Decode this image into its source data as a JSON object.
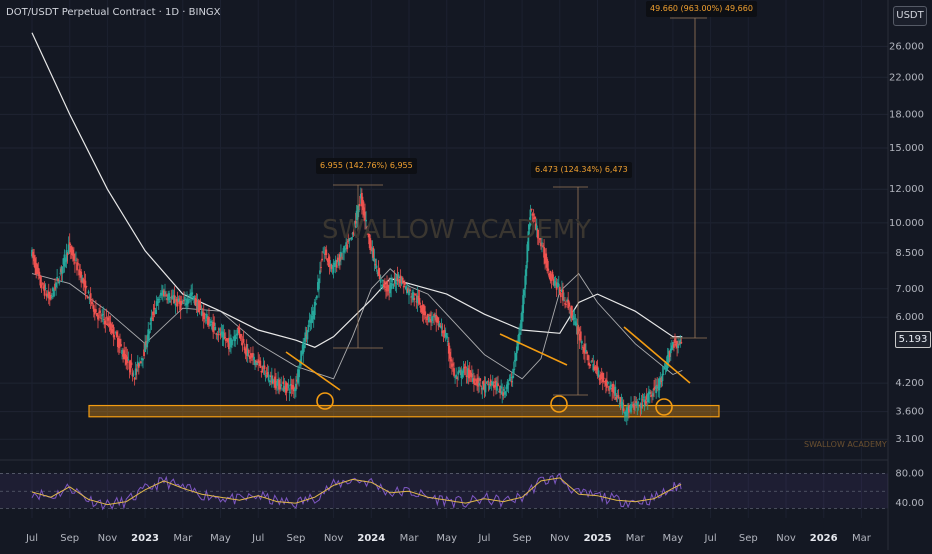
{
  "header": {
    "title": "DOT/USDT Perpetual Contract · 1D · BINGX",
    "currency": "USDT",
    "last_price": "5.193"
  },
  "watermarks": {
    "main": "SWALLOW ACADEMY",
    "corner": "SWALLOW ACADEMY"
  },
  "measurements": [
    {
      "text": "6.955 (142.76%) 6,955"
    },
    {
      "text": "6.473 (124.34%) 6,473"
    },
    {
      "text": "49.660 (963.00%) 49,660"
    }
  ],
  "colors": {
    "background": "#141823",
    "up": "#26a69a",
    "down": "#ef5350",
    "annotation": "#f39c12",
    "rsi": "#7e57c2",
    "rsi_ma": "#e0b84a"
  },
  "chart_data": [
    {
      "type": "line",
      "title": "DOT/USDT Perpetual Contract · 1D · BINGX",
      "scale": "log",
      "ylim": [
        2.8,
        30
      ],
      "y_ticks": [
        26,
        22,
        18,
        15,
        12,
        10,
        8.5,
        7,
        6,
        4.2,
        3.6,
        3.1
      ],
      "y_tick_labels": [
        "26.000",
        "22.000",
        "18.000",
        "15.000",
        "12.000",
        "10.000",
        "8.500",
        "7.000",
        "6.000",
        "4.200",
        "3.600",
        "3.100"
      ],
      "x_tick_labels": [
        "Jul",
        "Sep",
        "Nov",
        "2023",
        "Mar",
        "May",
        "Jul",
        "Sep",
        "Nov",
        "2024",
        "Mar",
        "May",
        "Jul",
        "Sep",
        "Nov",
        "2025",
        "Mar",
        "May",
        "Jul",
        "Sep",
        "Nov",
        "2026",
        "Mar"
      ],
      "x_tick_bold": [
        "2023",
        "2024",
        "2025",
        "2026"
      ],
      "x_ticks": [
        0,
        2,
        4,
        6,
        8,
        10,
        12,
        14,
        16,
        18,
        20,
        22,
        24,
        26,
        28,
        30,
        32,
        34,
        36,
        38,
        40,
        42,
        44
      ],
      "x_unit": "months since Jul 2022",
      "series": [
        {
          "role": "price",
          "x": [
            0,
            0.5,
            1,
            1.5,
            2,
            2.5,
            3,
            3.5,
            4,
            4.5,
            5,
            5.5,
            6,
            6.5,
            7,
            7.5,
            8,
            8.5,
            9,
            9.5,
            10,
            10.5,
            11,
            11.5,
            12,
            12.5,
            13,
            13.5,
            14,
            14.5,
            15,
            15.5,
            16,
            16.5,
            17,
            17.5,
            18,
            18.5,
            19,
            19.5,
            20,
            20.5,
            21,
            21.5,
            22,
            22.5,
            23,
            23.5,
            24,
            24.5,
            25,
            25.5,
            26,
            26.5,
            27,
            27.5,
            28,
            28.5,
            29,
            29.5,
            30,
            30.5,
            31,
            31.5,
            32,
            32.5,
            33,
            33.5,
            34,
            34.5
          ],
          "values": [
            8.6,
            7.2,
            6.6,
            7.5,
            8.8,
            7.8,
            6.8,
            6.1,
            5.9,
            5.4,
            4.8,
            4.4,
            5.0,
            6.2,
            6.9,
            6.6,
            6.4,
            6.8,
            6.2,
            5.8,
            5.5,
            5.2,
            5.6,
            4.9,
            4.7,
            4.4,
            4.2,
            4.1,
            4.1,
            5.3,
            6.2,
            8.6,
            7.8,
            8.4,
            9.2,
            11.5,
            8.9,
            7.3,
            7.0,
            7.5,
            6.9,
            6.6,
            6.0,
            5.9,
            5.4,
            4.3,
            4.5,
            4.3,
            4.1,
            4.2,
            4.0,
            4.3,
            5.8,
            10.8,
            9.1,
            7.6,
            7.0,
            6.4,
            5.6,
            4.8,
            4.5,
            4.2,
            4.0,
            3.6,
            3.7,
            3.8,
            4.0,
            4.3,
            5.2,
            5.19
          ]
        },
        {
          "role": "ma-short",
          "x": [
            0,
            2,
            4,
            6,
            8,
            10,
            12,
            14,
            16,
            17,
            18,
            19,
            20,
            21,
            22,
            24,
            26,
            27,
            28,
            29,
            30,
            32,
            34,
            34.5
          ],
          "values": [
            7.6,
            7.2,
            6.2,
            5.2,
            6.3,
            6.2,
            5.2,
            4.6,
            4.3,
            5.4,
            7.0,
            7.8,
            7.1,
            6.8,
            6.1,
            4.9,
            4.3,
            4.8,
            6.9,
            7.6,
            6.5,
            5.2,
            4.4,
            4.5
          ]
        },
        {
          "role": "ma-long",
          "x": [
            0,
            2,
            4,
            6,
            8,
            10,
            12,
            14,
            15,
            16,
            18,
            19,
            20,
            22,
            24,
            26,
            28,
            29,
            30,
            32,
            34,
            34.5
          ],
          "values": [
            28,
            18,
            12,
            8.6,
            6.8,
            6.2,
            5.6,
            5.3,
            5.1,
            5.4,
            6.6,
            7.4,
            7.2,
            6.8,
            6.1,
            5.6,
            5.5,
            6.5,
            6.8,
            6.2,
            5.4,
            5.4
          ]
        },
        {
          "role": "rsi",
          "x": [
            0,
            1,
            2,
            3,
            4,
            5,
            6,
            7,
            8,
            9,
            10,
            11,
            12,
            13,
            14,
            15,
            16,
            17,
            18,
            19,
            20,
            21,
            22,
            23,
            24,
            25,
            26,
            27,
            28,
            29,
            30,
            31,
            32,
            33,
            34,
            34.5
          ],
          "values": [
            55,
            48,
            62,
            45,
            38,
            42,
            58,
            70,
            60,
            52,
            48,
            44,
            50,
            42,
            40,
            48,
            64,
            72,
            68,
            54,
            56,
            48,
            44,
            40,
            46,
            42,
            48,
            70,
            74,
            52,
            50,
            44,
            42,
            46,
            60,
            66
          ]
        }
      ]
    }
  ]
}
